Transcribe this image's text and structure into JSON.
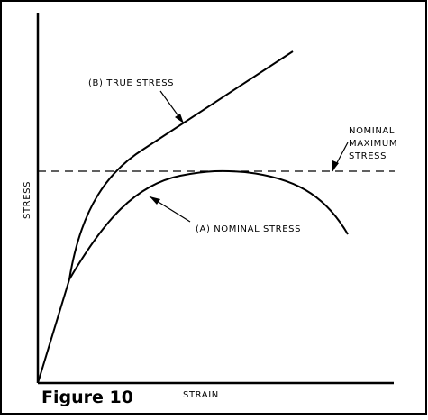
{
  "figure": {
    "caption": "Figure 10",
    "x_axis_label": "STRAIN",
    "y_axis_label": "STRESS"
  },
  "curves": {
    "true_stress_label": "(B) TRUE STRESS",
    "nominal_stress_label": "(A) NOMINAL STRESS",
    "nominal_max_label": [
      "NOMINAL",
      "MAXIMUM",
      "STRESS"
    ]
  },
  "colors": {
    "stroke": "#000000",
    "background": "#ffffff"
  }
}
